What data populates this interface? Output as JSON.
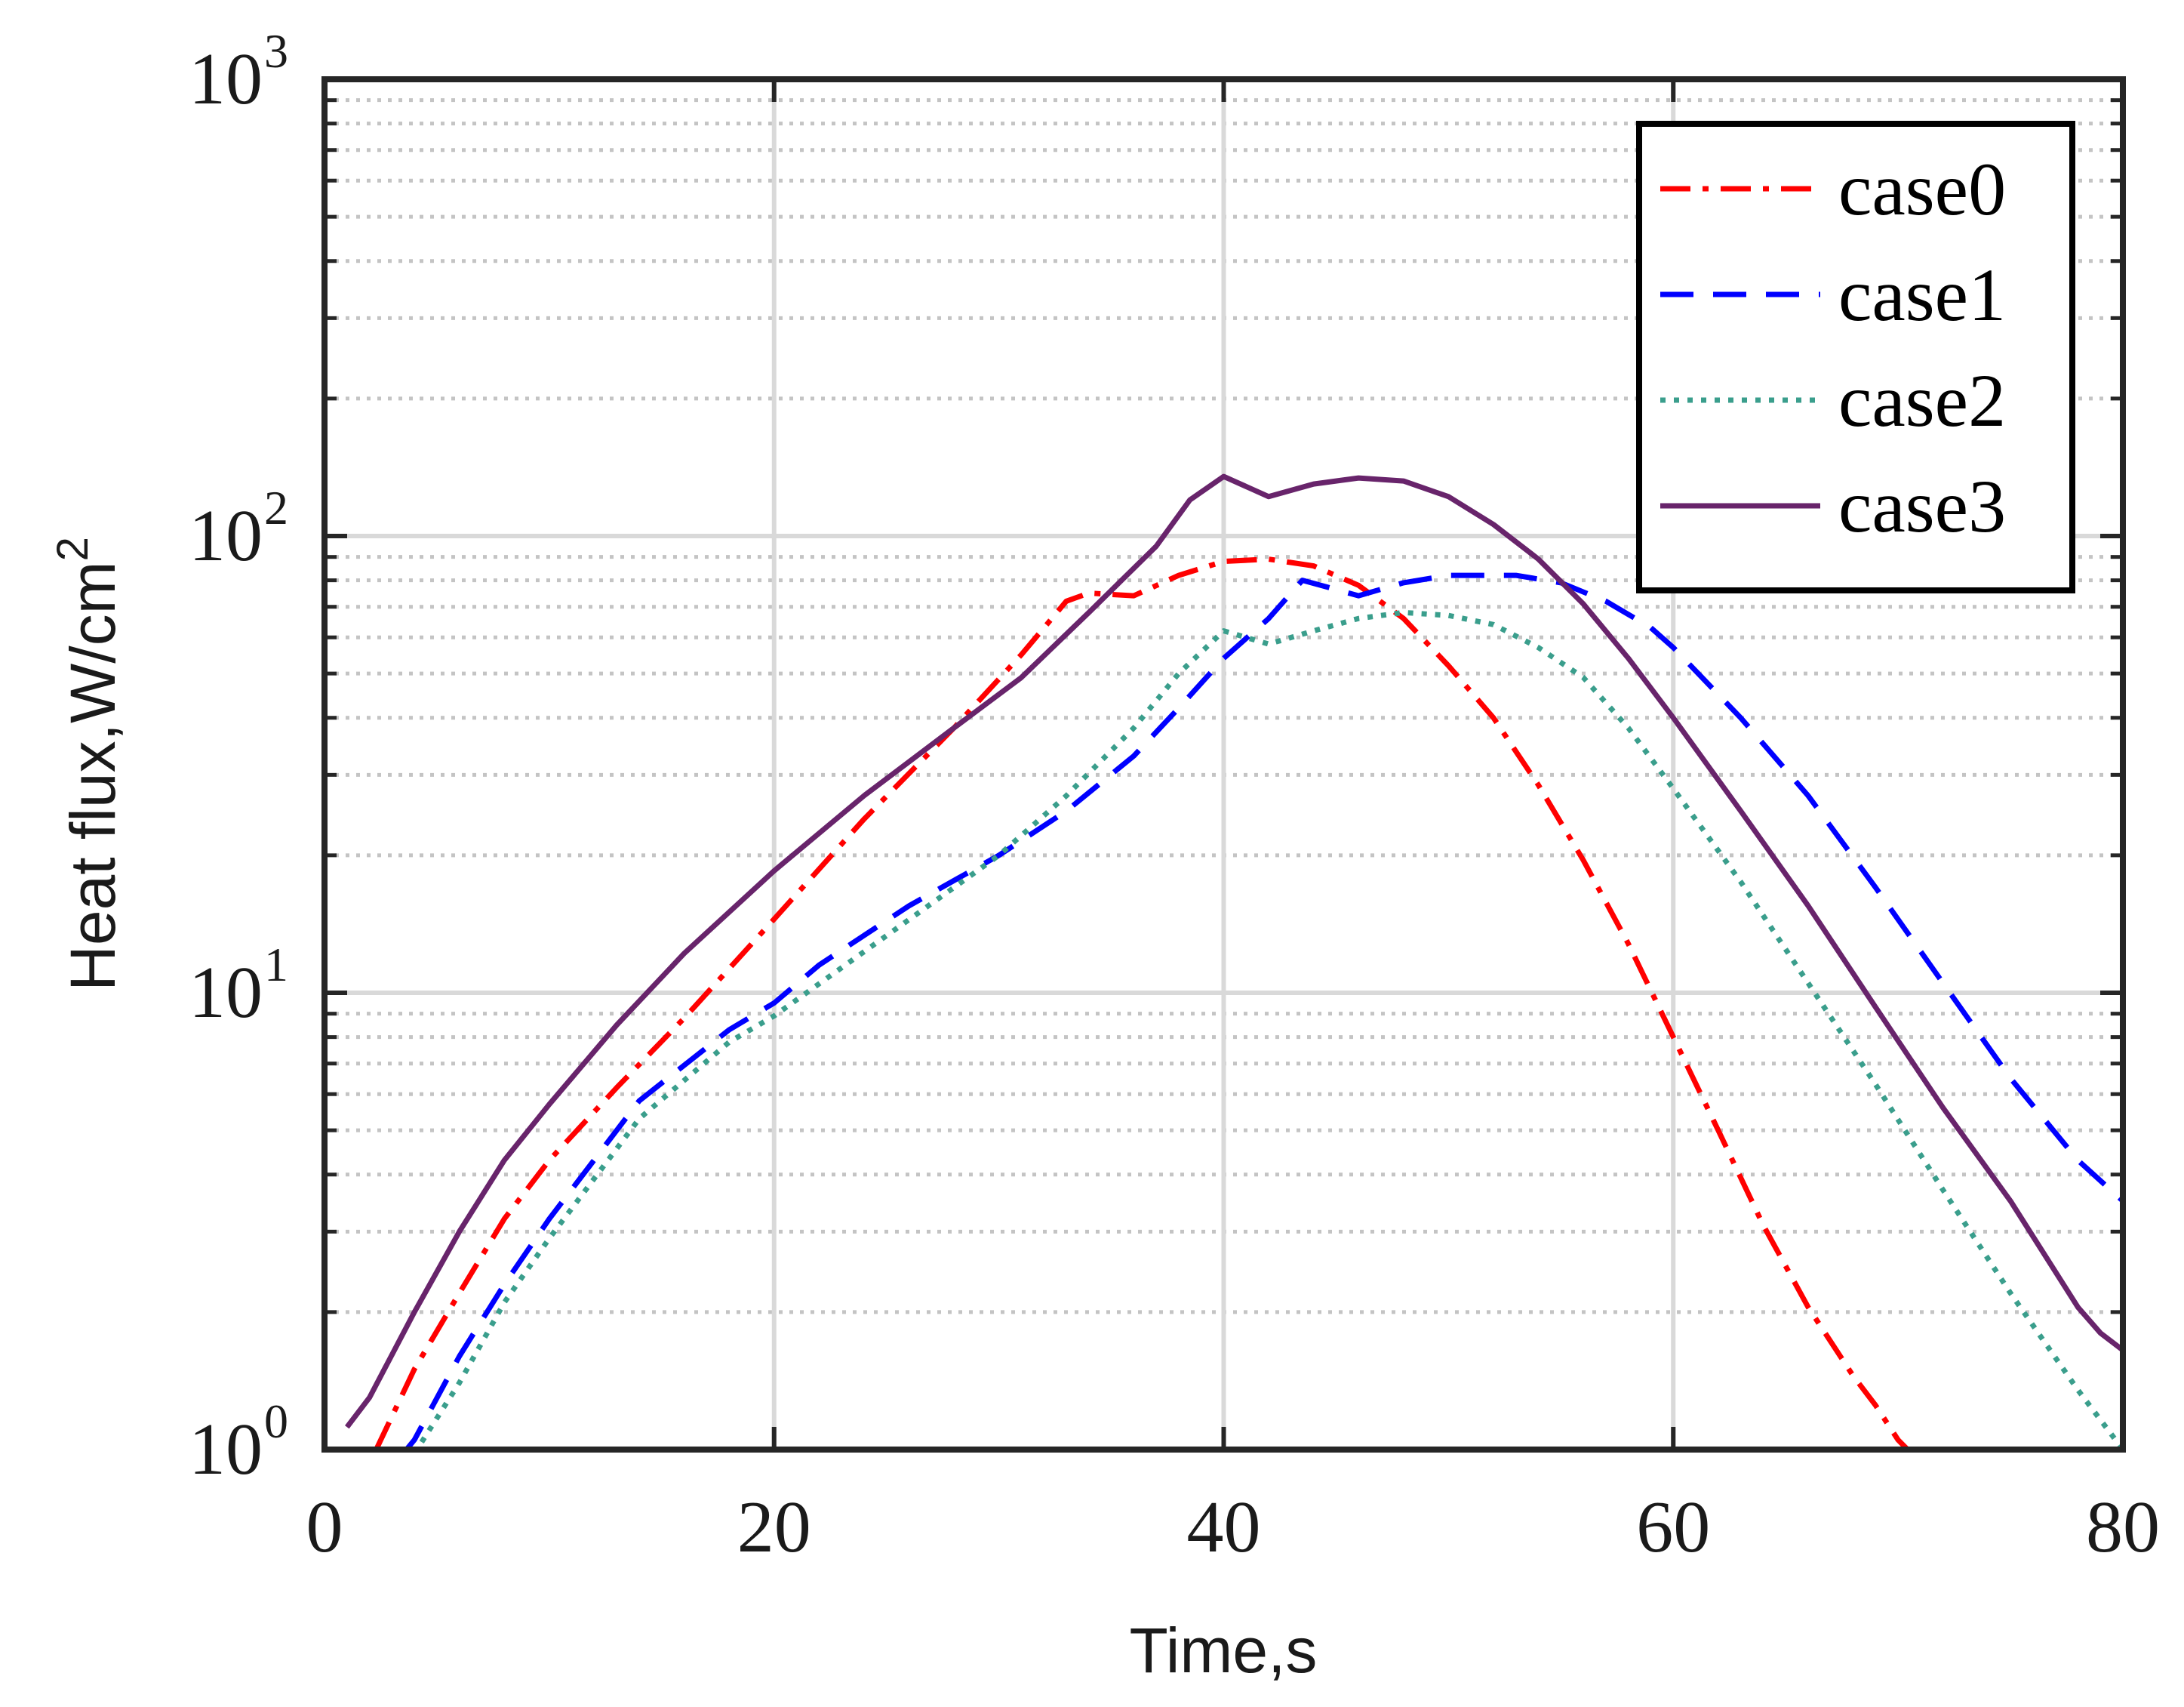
{
  "chart_data": {
    "type": "line",
    "xlabel": "Time,s",
    "ylabel": "Heat flux,W/cm",
    "ylabel_sup": "2",
    "xlim": [
      0,
      80
    ],
    "ylim": [
      1,
      1000
    ],
    "yscale": "log",
    "grid": true,
    "legend_position": "top-right",
    "x_ticks": [
      "0",
      "20",
      "40",
      "60",
      "80"
    ],
    "y_ticks": [
      {
        "base": "10",
        "exp": "0"
      },
      {
        "base": "10",
        "exp": "1"
      },
      {
        "base": "10",
        "exp": "2"
      },
      {
        "base": "10",
        "exp": "3"
      }
    ],
    "series": [
      {
        "name": "case0",
        "color": "#ff0000",
        "dash": "dashdot",
        "x": [
          2.3,
          4,
          6,
          8,
          10,
          13,
          16,
          20,
          24,
          28,
          31,
          33,
          34,
          36,
          38,
          40,
          42,
          44,
          46,
          48,
          50,
          52,
          54,
          56,
          58,
          60,
          62,
          64,
          66,
          68,
          69,
          70,
          70.6
        ],
        "y": [
          1.0,
          1.5,
          2.2,
          3.2,
          4.3,
          6.2,
          8.8,
          14.5,
          24,
          38,
          55,
          72,
          75,
          74,
          82,
          88,
          89,
          86,
          78,
          66,
          52,
          40,
          28.5,
          19.5,
          12.8,
          8.0,
          5.0,
          3.1,
          2.05,
          1.45,
          1.25,
          1.05,
          0.98
        ]
      },
      {
        "name": "case1",
        "color": "#0000ff",
        "dash": "dashed",
        "x": [
          3.5,
          4,
          6,
          8,
          10,
          14,
          18,
          20,
          22,
          26,
          30,
          33,
          36,
          38,
          40,
          42,
          43.5,
          46,
          48,
          50,
          53,
          55,
          57,
          59,
          60,
          63,
          66,
          69,
          72,
          75,
          78,
          80
        ],
        "y": [
          0.98,
          1.05,
          1.6,
          2.3,
          3.2,
          5.8,
          8.3,
          9.5,
          11.5,
          15.5,
          20,
          25,
          33,
          42,
          54,
          66,
          80,
          74,
          79,
          82,
          82,
          79,
          72,
          63,
          57,
          40,
          27,
          17,
          10.5,
          6.5,
          4.3,
          3.5
        ]
      },
      {
        "name": "case2",
        "color": "#3a9e8c",
        "dash": "dotted",
        "x": [
          4,
          6,
          8,
          10,
          14,
          18,
          20,
          24,
          28,
          30,
          33,
          36,
          38,
          40,
          42,
          44,
          46,
          48,
          50,
          52,
          54,
          56,
          58,
          60,
          63,
          66,
          69,
          72,
          75,
          78,
          80
        ],
        "y": [
          0.98,
          1.4,
          2.1,
          2.9,
          5.3,
          7.8,
          8.9,
          12.3,
          17,
          20,
          27,
          38,
          50,
          62,
          58,
          62,
          66,
          68,
          67,
          64,
          57,
          49,
          38,
          28,
          17.5,
          10.5,
          6.3,
          3.7,
          2.2,
          1.35,
          1.0
        ]
      },
      {
        "name": "case3",
        "color": "#68246b",
        "dash": "solid",
        "x": [
          1,
          2,
          4,
          6,
          8,
          10,
          13,
          16,
          20,
          24,
          28,
          31,
          34,
          37,
          38.5,
          40,
          42,
          44,
          46,
          48,
          50,
          52,
          54,
          56,
          58,
          60,
          63,
          66,
          69,
          72,
          75,
          78,
          79,
          80
        ],
        "y": [
          1.12,
          1.3,
          2.0,
          3.0,
          4.3,
          5.7,
          8.5,
          12.2,
          18.5,
          27,
          38,
          49,
          68,
          95,
          120,
          135,
          122,
          130,
          134,
          132,
          122,
          106,
          89,
          71,
          54,
          40,
          25,
          15.5,
          9.3,
          5.6,
          3.5,
          2.05,
          1.8,
          1.65
        ]
      }
    ]
  }
}
